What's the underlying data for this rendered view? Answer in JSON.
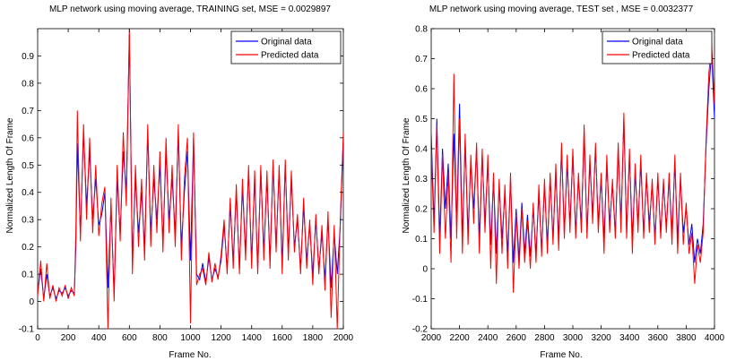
{
  "chart_data": [
    {
      "type": "line",
      "title": "MLP network using moving average, TRAINING set,  MSE = 0.0029897",
      "xlabel": "Frame No.",
      "ylabel": "Normalized Length Of Frame",
      "xlim": [
        0,
        2000
      ],
      "ylim": [
        -0.1,
        1.0
      ],
      "xticks": [
        "0",
        "200",
        "400",
        "600",
        "800",
        "1000",
        "1200",
        "1400",
        "1600",
        "1800",
        "2000"
      ],
      "yticks": [
        "-0.1",
        "0",
        "0.1",
        "0.2",
        "0.3",
        "0.4",
        "0.5",
        "0.6",
        "0.7",
        "0.8",
        "0.9"
      ],
      "legend": {
        "position": "top-right"
      },
      "series": [
        {
          "name": "Original data",
          "color": "#0000ff",
          "x": [
            0,
            20,
            40,
            60,
            80,
            100,
            120,
            140,
            160,
            180,
            200,
            220,
            240,
            250,
            260,
            280,
            300,
            320,
            340,
            360,
            380,
            400,
            420,
            440,
            460,
            480,
            500,
            520,
            540,
            560,
            580,
            600,
            620,
            640,
            660,
            680,
            700,
            720,
            740,
            760,
            780,
            800,
            820,
            840,
            860,
            880,
            900,
            920,
            940,
            960,
            980,
            1000,
            1020,
            1040,
            1060,
            1080,
            1100,
            1120,
            1140,
            1160,
            1180,
            1200,
            1220,
            1240,
            1260,
            1280,
            1300,
            1320,
            1340,
            1360,
            1380,
            1400,
            1420,
            1440,
            1460,
            1480,
            1500,
            1520,
            1540,
            1560,
            1580,
            1600,
            1620,
            1640,
            1660,
            1680,
            1700,
            1720,
            1740,
            1760,
            1780,
            1800,
            1820,
            1840,
            1860,
            1880,
            1900,
            1920,
            1940,
            1960,
            1980,
            2000
          ],
          "y": [
            0.03,
            0.12,
            0.01,
            0.1,
            0.02,
            0.05,
            0.01,
            0.04,
            0.03,
            0.05,
            0.02,
            0.04,
            0.03,
            0.2,
            0.58,
            0.25,
            0.62,
            0.35,
            0.55,
            0.3,
            0.45,
            0.28,
            0.32,
            0.4,
            0.05,
            0.35,
            0.03,
            0.45,
            0.25,
            0.55,
            0.4,
            0.98,
            0.15,
            0.45,
            0.25,
            0.4,
            0.2,
            0.62,
            0.25,
            0.45,
            0.3,
            0.5,
            0.22,
            0.55,
            0.3,
            0.45,
            0.25,
            0.62,
            0.2,
            0.4,
            0.55,
            0.15,
            0.6,
            0.1,
            0.08,
            0.14,
            0.07,
            0.16,
            0.08,
            0.12,
            0.09,
            0.15,
            0.28,
            0.12,
            0.35,
            0.15,
            0.4,
            0.12,
            0.42,
            0.18,
            0.48,
            0.15,
            0.45,
            0.12,
            0.48,
            0.18,
            0.45,
            0.15,
            0.5,
            0.2,
            0.48,
            0.14,
            0.5,
            0.18,
            0.45,
            0.2,
            0.3,
            0.12,
            0.35,
            0.15,
            0.28,
            0.1,
            0.3,
            0.12,
            0.25,
            0.08,
            0.3,
            0.05,
            0.25,
            0.1,
            0.28,
            0.6
          ]
        },
        {
          "name": "Predicted data",
          "color": "#ff0000",
          "x": [
            0,
            20,
            40,
            60,
            80,
            100,
            120,
            140,
            160,
            180,
            200,
            220,
            240,
            250,
            260,
            280,
            300,
            320,
            340,
            360,
            380,
            400,
            420,
            440,
            460,
            480,
            500,
            520,
            540,
            560,
            580,
            600,
            620,
            640,
            660,
            680,
            700,
            720,
            740,
            760,
            780,
            800,
            820,
            840,
            860,
            880,
            900,
            920,
            940,
            960,
            980,
            1000,
            1020,
            1040,
            1060,
            1080,
            1100,
            1120,
            1140,
            1160,
            1180,
            1200,
            1220,
            1240,
            1260,
            1280,
            1300,
            1320,
            1340,
            1360,
            1380,
            1400,
            1420,
            1440,
            1460,
            1480,
            1500,
            1520,
            1540,
            1560,
            1580,
            1600,
            1620,
            1640,
            1660,
            1680,
            1700,
            1720,
            1740,
            1760,
            1780,
            1800,
            1820,
            1840,
            1860,
            1880,
            1900,
            1920,
            1940,
            1960,
            1980,
            2000
          ],
          "y": [
            0.02,
            0.15,
            0.0,
            0.14,
            0.01,
            0.06,
            0.0,
            0.05,
            0.02,
            0.06,
            0.01,
            0.05,
            0.02,
            0.25,
            0.7,
            0.22,
            0.65,
            0.3,
            0.6,
            0.25,
            0.5,
            0.24,
            0.36,
            0.42,
            -0.1,
            0.38,
            0.0,
            0.5,
            0.22,
            0.62,
            0.35,
            1.0,
            0.1,
            0.5,
            0.2,
            0.45,
            0.15,
            0.65,
            0.2,
            0.5,
            0.25,
            0.55,
            0.18,
            0.6,
            0.25,
            0.5,
            0.2,
            0.65,
            0.15,
            0.45,
            0.6,
            -0.08,
            0.62,
            0.06,
            0.1,
            0.12,
            0.06,
            0.18,
            0.07,
            0.14,
            0.08,
            0.17,
            0.3,
            0.1,
            0.38,
            0.12,
            0.43,
            0.1,
            0.45,
            0.15,
            0.5,
            0.12,
            0.48,
            0.1,
            0.5,
            0.15,
            0.48,
            0.12,
            0.52,
            0.18,
            0.5,
            0.1,
            0.52,
            0.15,
            0.48,
            0.18,
            0.32,
            0.1,
            0.38,
            0.12,
            0.3,
            0.06,
            0.32,
            0.1,
            0.28,
            0.04,
            0.33,
            -0.06,
            0.28,
            -0.1,
            0.3,
            0.62
          ]
        }
      ]
    },
    {
      "type": "line",
      "title": "MLP network using moving average, TEST set ,  MSE = 0.0032377",
      "xlabel": "Frame No.",
      "ylabel": "Normalized Length Of Frame",
      "xlim": [
        2000,
        4000
      ],
      "ylim": [
        -0.2,
        0.8
      ],
      "xticks": [
        "2000",
        "2200",
        "2400",
        "2600",
        "2800",
        "3000",
        "3200",
        "3400",
        "3600",
        "3800",
        "4000"
      ],
      "yticks": [
        "-0.2",
        "-0.1",
        "0",
        "0.1",
        "0.2",
        "0.3",
        "0.4",
        "0.5",
        "0.6",
        "0.7",
        "0.8"
      ],
      "legend": {
        "position": "top-right"
      },
      "series": [
        {
          "name": "Original data",
          "color": "#0000ff",
          "x": [
            2000,
            2020,
            2040,
            2060,
            2080,
            2100,
            2120,
            2140,
            2160,
            2180,
            2200,
            2220,
            2240,
            2260,
            2280,
            2300,
            2320,
            2340,
            2360,
            2380,
            2400,
            2420,
            2440,
            2460,
            2480,
            2500,
            2520,
            2540,
            2560,
            2580,
            2600,
            2620,
            2640,
            2660,
            2680,
            2700,
            2720,
            2740,
            2760,
            2780,
            2800,
            2820,
            2840,
            2860,
            2880,
            2900,
            2920,
            2940,
            2960,
            2980,
            3000,
            3020,
            3040,
            3060,
            3080,
            3100,
            3120,
            3140,
            3160,
            3180,
            3200,
            3220,
            3240,
            3260,
            3280,
            3300,
            3320,
            3340,
            3360,
            3380,
            3400,
            3420,
            3440,
            3460,
            3480,
            3500,
            3520,
            3540,
            3560,
            3580,
            3600,
            3620,
            3640,
            3660,
            3680,
            3700,
            3720,
            3740,
            3760,
            3780,
            3800,
            3820,
            3840,
            3860,
            3880,
            3900,
            3920,
            3940,
            3960,
            3980,
            4000
          ],
          "y": [
            0.45,
            0.15,
            0.5,
            0.1,
            0.4,
            0.2,
            0.35,
            0.1,
            0.45,
            0.15,
            0.55,
            0.1,
            0.42,
            0.12,
            0.35,
            0.2,
            0.4,
            0.1,
            0.38,
            0.15,
            0.35,
            0.08,
            0.3,
            0.05,
            0.28,
            0.1,
            0.25,
            0.05,
            0.3,
            0.02,
            0.2,
            0.03,
            0.22,
            0.05,
            0.18,
            0.04,
            0.2,
            0.05,
            0.25,
            0.06,
            0.28,
            0.08,
            0.3,
            0.1,
            0.32,
            0.1,
            0.4,
            0.12,
            0.35,
            0.15,
            0.38,
            0.12,
            0.3,
            0.15,
            0.45,
            0.12,
            0.35,
            0.18,
            0.4,
            0.15,
            0.3,
            0.1,
            0.35,
            0.15,
            0.28,
            0.12,
            0.4,
            0.15,
            0.5,
            0.12,
            0.38,
            0.1,
            0.32,
            0.15,
            0.35,
            0.12,
            0.3,
            0.15,
            0.28,
            0.1,
            0.3,
            0.12,
            0.28,
            0.14,
            0.3,
            0.12,
            0.35,
            0.1,
            0.3,
            0.12,
            0.2,
            0.08,
            0.15,
            0.02,
            0.1,
            0.05,
            0.15,
            0.4,
            0.6,
            0.72,
            0.5
          ]
        },
        {
          "name": "Predicted data",
          "color": "#ff0000",
          "x": [
            2000,
            2020,
            2040,
            2060,
            2080,
            2100,
            2120,
            2140,
            2160,
            2180,
            2200,
            2220,
            2240,
            2260,
            2280,
            2300,
            2320,
            2340,
            2360,
            2380,
            2400,
            2420,
            2440,
            2460,
            2480,
            2500,
            2520,
            2540,
            2560,
            2580,
            2600,
            2620,
            2640,
            2660,
            2680,
            2700,
            2720,
            2740,
            2760,
            2780,
            2800,
            2820,
            2840,
            2860,
            2880,
            2900,
            2920,
            2940,
            2960,
            2980,
            3000,
            3020,
            3040,
            3060,
            3080,
            3100,
            3120,
            3140,
            3160,
            3180,
            3200,
            3220,
            3240,
            3260,
            3280,
            3300,
            3320,
            3340,
            3360,
            3380,
            3400,
            3420,
            3440,
            3460,
            3480,
            3500,
            3520,
            3540,
            3560,
            3580,
            3600,
            3620,
            3640,
            3660,
            3680,
            3700,
            3720,
            3740,
            3760,
            3780,
            3800,
            3820,
            3840,
            3860,
            3880,
            3900,
            3920,
            3940,
            3960,
            3980,
            4000
          ],
          "y": [
            0.4,
            0.12,
            0.48,
            0.05,
            0.38,
            0.1,
            0.32,
            0.02,
            0.65,
            0.1,
            0.5,
            0.05,
            0.45,
            0.08,
            0.38,
            0.15,
            0.42,
            0.05,
            0.4,
            0.12,
            0.38,
            0.0,
            0.32,
            -0.05,
            0.3,
            0.05,
            0.28,
            0.0,
            0.32,
            -0.08,
            0.18,
            0.0,
            0.2,
            0.02,
            0.16,
            0.0,
            0.22,
            0.02,
            0.28,
            0.04,
            0.3,
            0.05,
            0.32,
            0.08,
            0.35,
            0.06,
            0.42,
            0.1,
            0.38,
            0.12,
            0.4,
            0.1,
            0.32,
            0.12,
            0.48,
            0.1,
            0.38,
            0.15,
            0.42,
            0.12,
            0.32,
            0.05,
            0.38,
            0.12,
            0.3,
            0.1,
            0.42,
            0.12,
            0.52,
            0.1,
            0.4,
            0.05,
            0.35,
            0.12,
            0.38,
            0.1,
            0.32,
            0.12,
            0.3,
            0.08,
            0.32,
            0.1,
            0.3,
            0.12,
            0.32,
            0.08,
            0.38,
            0.05,
            0.32,
            0.08,
            0.22,
            0.05,
            0.12,
            -0.05,
            0.08,
            0.02,
            0.12,
            0.42,
            0.65,
            0.75,
            0.55
          ]
        }
      ]
    }
  ]
}
